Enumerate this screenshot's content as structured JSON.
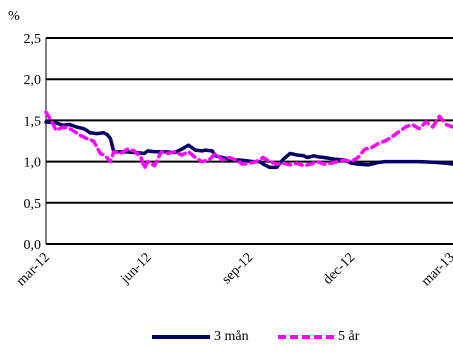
{
  "chart_data": {
    "type": "line",
    "ylabel": "%",
    "ylim": [
      0,
      2.5
    ],
    "yticks": [
      0.0,
      0.5,
      1.0,
      1.5,
      2.0,
      2.5
    ],
    "ytick_labels": [
      "0,0",
      "0,5",
      "1,0",
      "1,5",
      "2,0",
      "2,5"
    ],
    "x_range": [
      "2012-03",
      "2013-03"
    ],
    "x_tick_labels": [
      "mar-12",
      "jun-12",
      "sep-12",
      "dec-12",
      "mar-13"
    ],
    "grid": "horizontal",
    "legend_position": "bottom",
    "series": [
      {
        "name": "3 mån",
        "color": "#000066",
        "style": "solid",
        "x": [
          0.0,
          0.3,
          0.5,
          0.7,
          0.9,
          1.0,
          1.1,
          1.2,
          1.3,
          1.5,
          1.7,
          1.8,
          1.9,
          2.0,
          2.3,
          2.6,
          2.9,
          3.0,
          3.2,
          3.5,
          3.8,
          4.0,
          4.2,
          4.4,
          4.6,
          4.7,
          4.9,
          5.0,
          5.2,
          5.4,
          5.6,
          5.7,
          5.9,
          6.1,
          6.3,
          6.4,
          6.6,
          6.8,
          7.0,
          7.2,
          7.4,
          7.6,
          7.7,
          7.9,
          8.0,
          8.2,
          8.5,
          8.8,
          9.0,
          9.2,
          9.5,
          9.8,
          10.0,
          10.3,
          10.6,
          11.0,
          11.5,
          11.8,
          12.0
        ],
        "y": [
          1.48,
          1.47,
          1.44,
          1.45,
          1.42,
          1.41,
          1.4,
          1.38,
          1.35,
          1.34,
          1.35,
          1.33,
          1.28,
          1.12,
          1.12,
          1.11,
          1.1,
          1.13,
          1.12,
          1.12,
          1.11,
          1.15,
          1.2,
          1.14,
          1.13,
          1.14,
          1.13,
          1.07,
          1.05,
          1.03,
          1.02,
          1.02,
          1.01,
          1.0,
          1.0,
          0.97,
          0.93,
          0.93,
          1.03,
          1.1,
          1.08,
          1.07,
          1.05,
          1.07,
          1.06,
          1.05,
          1.03,
          1.02,
          0.98,
          0.97,
          0.96,
          0.99,
          1.0,
          1.0,
          1.0,
          1.0,
          0.99,
          0.98,
          0.97
        ]
      },
      {
        "name": "5 år",
        "color": "#ff00ff",
        "style": "dashed",
        "x": [
          0.0,
          0.15,
          0.3,
          0.5,
          0.7,
          0.9,
          1.0,
          1.2,
          1.4,
          1.6,
          1.7,
          1.8,
          1.9,
          2.0,
          2.2,
          2.4,
          2.6,
          2.8,
          2.9,
          3.0,
          3.2,
          3.4,
          3.6,
          3.8,
          4.0,
          4.2,
          4.4,
          4.6,
          4.8,
          5.0,
          5.2,
          5.4,
          5.6,
          5.8,
          6.0,
          6.2,
          6.4,
          6.6,
          6.8,
          7.0,
          7.2,
          7.4,
          7.6,
          7.8,
          8.0,
          8.2,
          8.4,
          8.6,
          8.8,
          9.0,
          9.2,
          9.4,
          9.6,
          9.8,
          10.0,
          10.2,
          10.4,
          10.6,
          10.8,
          11.0,
          11.2,
          11.4,
          11.6,
          11.8,
          12.0
        ],
        "y": [
          1.6,
          1.5,
          1.38,
          1.42,
          1.4,
          1.35,
          1.32,
          1.28,
          1.25,
          1.1,
          1.08,
          1.05,
          1.0,
          1.12,
          1.1,
          1.15,
          1.13,
          1.05,
          0.92,
          1.0,
          0.95,
          1.12,
          1.1,
          1.12,
          1.08,
          1.12,
          1.05,
          1.0,
          1.02,
          1.1,
          1.02,
          1.05,
          1.02,
          0.97,
          0.98,
          1.0,
          1.05,
          1.0,
          0.97,
          0.98,
          0.96,
          0.98,
          0.95,
          0.97,
          1.0,
          0.97,
          0.98,
          1.0,
          1.02,
          1.0,
          1.05,
          1.15,
          1.17,
          1.22,
          1.25,
          1.3,
          1.36,
          1.42,
          1.45,
          1.4,
          1.48,
          1.42,
          1.55,
          1.45,
          1.42
        ]
      }
    ]
  }
}
